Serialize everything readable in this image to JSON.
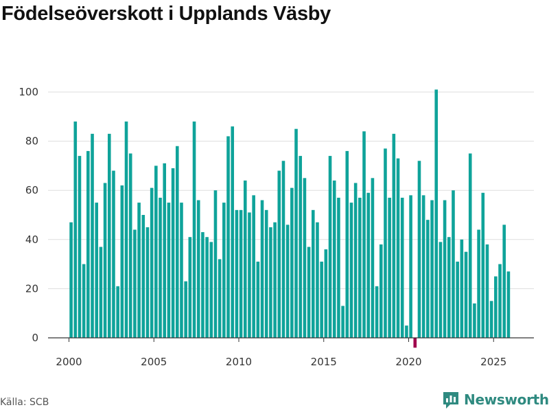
{
  "title": "Födelseöverskott i Upplands Väsby",
  "source": "Källa: SCB",
  "brand": {
    "name": "Newsworthy",
    "icon": "newsworthy-logo-icon"
  },
  "colors": {
    "positive": "#0fa39a",
    "negative": "#a0004d",
    "grid": "#dddddd",
    "axis": "#333333"
  },
  "chart_data": {
    "type": "bar",
    "title": "Födelseöverskott i Upplands Väsby",
    "xlabel": "",
    "ylabel": "",
    "frequency": "quarterly",
    "start_period": "2000 Q1",
    "ylim": [
      0,
      100
    ],
    "yticks": [
      0,
      20,
      40,
      60,
      80,
      100
    ],
    "xticks": [
      {
        "label": "2000",
        "year": 2000
      },
      {
        "label": "2005",
        "year": 2005
      },
      {
        "label": "2010",
        "year": 2010
      },
      {
        "label": "2015",
        "year": 2015
      },
      {
        "label": "2020",
        "year": 2020
      },
      {
        "label": "2025",
        "year": 2025
      }
    ],
    "grid": true,
    "legend": "none",
    "values": [
      47,
      88,
      74,
      30,
      76,
      83,
      55,
      37,
      63,
      83,
      68,
      21,
      62,
      88,
      75,
      44,
      55,
      50,
      45,
      61,
      70,
      57,
      71,
      55,
      69,
      78,
      55,
      23,
      41,
      88,
      56,
      43,
      41,
      39,
      60,
      32,
      55,
      82,
      86,
      52,
      52,
      64,
      51,
      58,
      31,
      56,
      52,
      45,
      47,
      68,
      72,
      46,
      61,
      85,
      74,
      65,
      37,
      52,
      47,
      31,
      36,
      74,
      64,
      57,
      13,
      76,
      55,
      63,
      57,
      84,
      59,
      65,
      21,
      38,
      77,
      57,
      83,
      73,
      57,
      5,
      58,
      -4,
      72,
      58,
      48,
      56,
      101,
      39,
      56,
      41,
      60,
      31,
      40,
      35,
      75,
      14,
      44,
      59,
      38,
      15,
      25,
      30,
      46,
      27
    ]
  }
}
